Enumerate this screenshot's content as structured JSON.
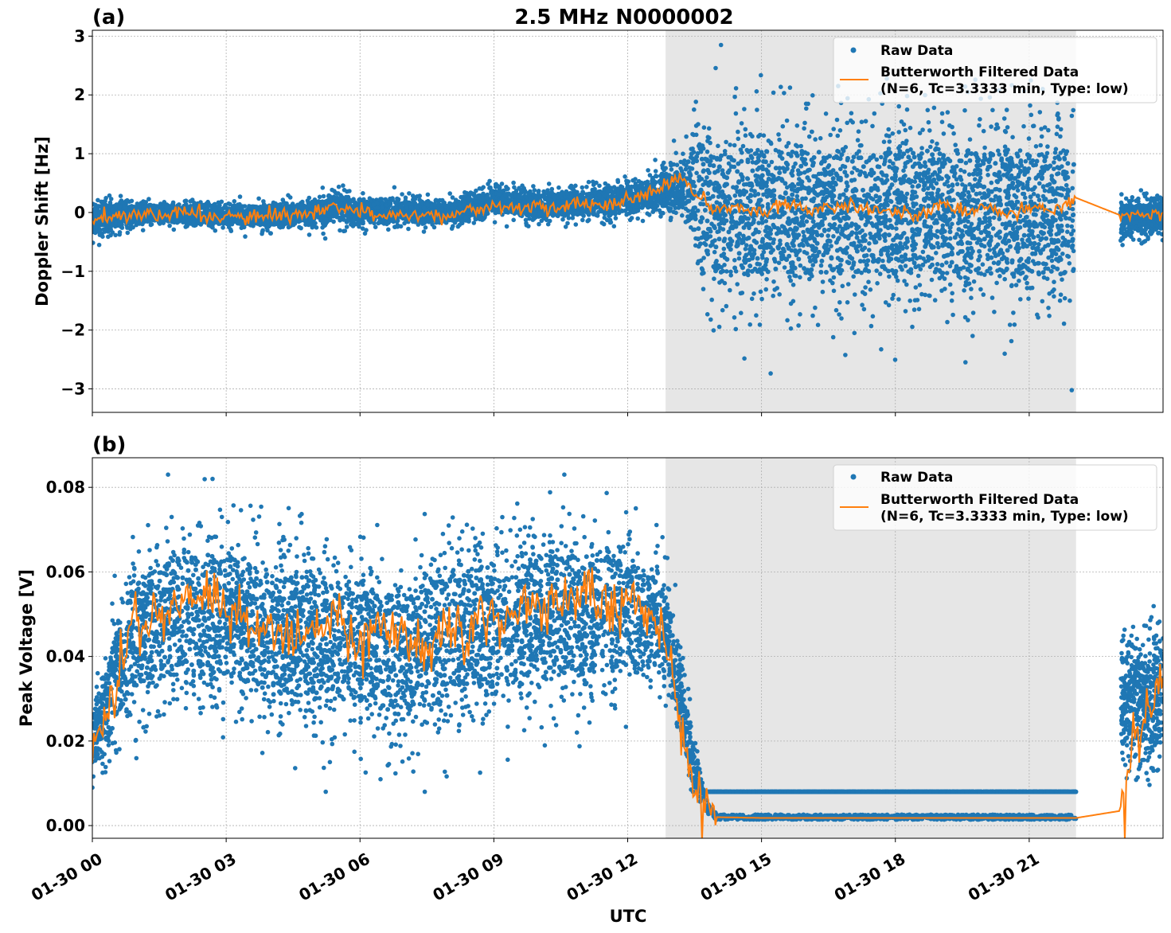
{
  "figure": {
    "title": "2.5 MHz N0000002",
    "xlabel": "UTC"
  },
  "chart_data": [
    {
      "type": "scatter",
      "panel_label": "(a)",
      "title": "2.5 MHz N0000002",
      "xlabel": "",
      "ylabel": "Doppler Shift [Hz]",
      "x_unit": "hours since 01-30 00:00 UTC",
      "xlim": [
        0,
        24
      ],
      "ylim": [
        -3.4,
        3.1
      ],
      "yticks": [
        3,
        2,
        1,
        0,
        -1,
        -2,
        -3
      ],
      "ytick_labels": [
        "3",
        "2",
        "1",
        "0",
        "−1",
        "−2",
        "−3"
      ],
      "shaded_region": [
        12.85,
        22.05
      ],
      "grid": true,
      "legend_position": "top-right",
      "series": [
        {
          "name": "Raw Data",
          "kind": "scatter",
          "color": "#1f77b4",
          "envelope": {
            "x": [
              0,
              1,
              2,
              3,
              4,
              5,
              5.5,
              6,
              7,
              8,
              9,
              10,
              11,
              12,
              12.85,
              13.3,
              13.6,
              14,
              15,
              16,
              17,
              18,
              19,
              20,
              21,
              22
            ],
            "center": [
              -0.1,
              -0.02,
              -0.02,
              -0.05,
              -0.05,
              -0.02,
              0.1,
              0.0,
              0.02,
              -0.02,
              0.2,
              0.12,
              0.15,
              0.22,
              0.35,
              0.5,
              0.3,
              0.0,
              0.0,
              0.0,
              0.0,
              0.0,
              0.0,
              0.0,
              0.0,
              0.0
            ],
            "halfwidth": [
              0.35,
              0.2,
              0.2,
              0.2,
              0.22,
              0.22,
              0.3,
              0.25,
              0.22,
              0.22,
              0.25,
              0.25,
              0.25,
              0.3,
              0.35,
              0.5,
              1.3,
              1.5,
              1.5,
              1.5,
              1.5,
              1.5,
              1.5,
              1.5,
              1.5,
              1.5
            ]
          },
          "extremes": {
            "max": 2.85,
            "min": -3.1
          },
          "late_segment": {
            "x": [
              23.05,
              24
            ],
            "center": -0.1,
            "halfwidth": 0.3
          }
        },
        {
          "name": "Butterworth Filtered Data\n(N=6, Tc=3.3333 min, Type: low)",
          "kind": "line",
          "color": "#ff7f0e",
          "x": [
            0,
            0.5,
            1,
            1.5,
            2,
            2.5,
            3,
            3.5,
            4,
            4.5,
            5,
            5.5,
            6,
            6.5,
            7,
            7.5,
            8,
            8.5,
            9,
            9.5,
            10,
            10.5,
            11,
            11.5,
            12,
            12.5,
            12.85,
            13.2,
            13.5,
            13.8,
            14,
            14.5,
            15,
            15.5,
            16,
            16.5,
            17,
            17.5,
            18,
            18.5,
            19,
            19.5,
            20,
            20.5,
            21,
            21.5,
            22.05,
            23.05,
            23.5,
            24
          ],
          "y": [
            -0.18,
            -0.05,
            -0.02,
            -0.05,
            0.0,
            -0.05,
            -0.08,
            -0.1,
            -0.05,
            -0.05,
            -0.02,
            0.08,
            0.0,
            -0.05,
            -0.02,
            -0.05,
            -0.05,
            0.05,
            0.12,
            0.05,
            0.12,
            0.08,
            0.15,
            0.12,
            0.2,
            0.35,
            0.45,
            0.6,
            0.35,
            0.1,
            0.05,
            0.08,
            -0.05,
            0.2,
            0.05,
            0.1,
            0.1,
            0.0,
            0.05,
            -0.05,
            0.15,
            0.0,
            0.1,
            -0.05,
            0.1,
            0.05,
            0.25,
            -0.05,
            -0.05,
            0.0
          ]
        }
      ]
    },
    {
      "type": "scatter",
      "panel_label": "(b)",
      "title": "",
      "xlabel": "UTC",
      "ylabel": "Peak Voltage [V]",
      "x_unit": "hours since 01-30 00:00 UTC",
      "xlim": [
        0,
        24
      ],
      "ylim": [
        -0.003,
        0.087
      ],
      "yticks": [
        0.08,
        0.06,
        0.04,
        0.02,
        0.0
      ],
      "ytick_labels": [
        "0.08",
        "0.06",
        "0.04",
        "0.02",
        "0.00"
      ],
      "xticks": [
        0,
        3,
        6,
        9,
        12,
        15,
        18,
        21
      ],
      "xtick_labels": [
        "01-30 00",
        "01-30 03",
        "01-30 06",
        "01-30 09",
        "01-30 12",
        "01-30 15",
        "01-30 18",
        "01-30 21"
      ],
      "shaded_region": [
        12.85,
        22.05
      ],
      "grid": true,
      "legend_position": "top-right",
      "series": [
        {
          "name": "Raw Data",
          "kind": "scatter",
          "color": "#1f77b4",
          "envelope": {
            "x": [
              0,
              0.3,
              0.7,
              1,
              2,
              3,
              4,
              5,
              6,
              7,
              8,
              9,
              10,
              11,
              12,
              12.8,
              13.2,
              13.5,
              13.8,
              14,
              15,
              18,
              22.05
            ],
            "center": [
              0.02,
              0.028,
              0.04,
              0.046,
              0.05,
              0.05,
              0.045,
              0.045,
              0.042,
              0.04,
              0.045,
              0.048,
              0.05,
              0.05,
              0.05,
              0.048,
              0.03,
              0.012,
              0.004,
              0.002,
              0.002,
              0.002,
              0.002
            ],
            "halfwidth": [
              0.008,
              0.012,
              0.016,
              0.018,
              0.02,
              0.02,
              0.02,
              0.02,
              0.02,
              0.02,
              0.02,
              0.02,
              0.02,
              0.02,
              0.018,
              0.012,
              0.01,
              0.006,
              0.002,
              0.0008,
              0.0008,
              0.0008,
              0.0008
            ]
          },
          "extremes": {
            "max": 0.083,
            "min": 0.008
          },
          "late_segment": {
            "x": [
              23.05,
              24
            ],
            "center": 0.03,
            "halfwidth": 0.015
          }
        },
        {
          "name": "Butterworth Filtered Data\n(N=6, Tc=3.3333 min, Type: low)",
          "kind": "line",
          "color": "#ff7f0e",
          "x": [
            0,
            0.3,
            0.6,
            0.8,
            1,
            1.5,
            2,
            2.5,
            3,
            3.5,
            4,
            4.5,
            5,
            5.5,
            6,
            6.5,
            7,
            7.5,
            8,
            8.5,
            9,
            9.5,
            10,
            10.5,
            11,
            11.5,
            12,
            12.5,
            12.85,
            13.1,
            13.4,
            13.7,
            14,
            15,
            16,
            17,
            18,
            19,
            20,
            21,
            22.05,
            23.05,
            23.3,
            23.6,
            24
          ],
          "y": [
            0.02,
            0.025,
            0.035,
            0.045,
            0.048,
            0.05,
            0.053,
            0.055,
            0.052,
            0.048,
            0.046,
            0.045,
            0.048,
            0.05,
            0.045,
            0.047,
            0.045,
            0.043,
            0.047,
            0.048,
            0.05,
            0.049,
            0.052,
            0.053,
            0.055,
            0.05,
            0.056,
            0.05,
            0.042,
            0.03,
            0.012,
            0.004,
            0.002,
            0.0018,
            0.0018,
            0.0018,
            0.0018,
            0.0018,
            0.0018,
            0.0018,
            0.0018,
            0.0035,
            0.02,
            0.025,
            0.035
          ]
        }
      ]
    }
  ],
  "legend": {
    "raw_label": "Raw Data",
    "filtered_line1": "Butterworth Filtered Data",
    "filtered_line2": "(N=6, Tc=3.3333 min, Type: low)"
  },
  "colors": {
    "raw": "#1f77b4",
    "filtered": "#ff7f0e",
    "shade": "#e6e6e6"
  }
}
